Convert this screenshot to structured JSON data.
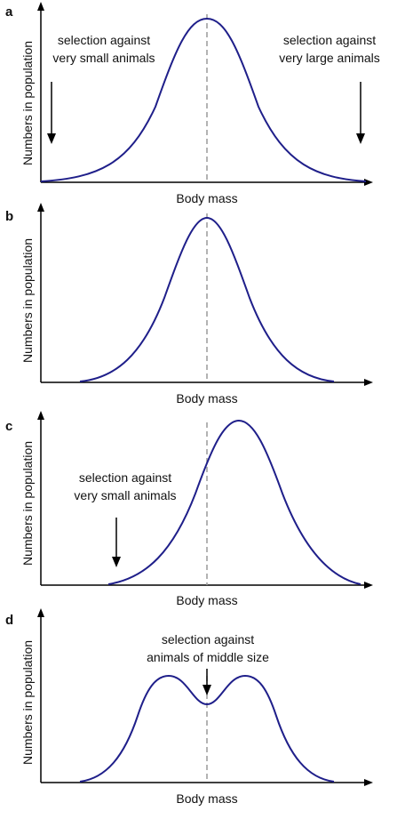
{
  "colors": {
    "curve": "#1f1f8a",
    "axis": "#000000",
    "median_line": "#9a9a9a",
    "arrow": "#000000",
    "text": "#111111"
  },
  "panels": [
    {
      "letter": "a",
      "xlabel": "Body mass",
      "ylabel": "Numbers in population",
      "shape": "wide-bell",
      "annotations": [
        {
          "line1": "selection against",
          "line2": "very small animals"
        },
        {
          "line1": "selection against",
          "line2": "very large animals"
        }
      ]
    },
    {
      "letter": "b",
      "xlabel": "Body mass",
      "ylabel": "Numbers in population",
      "shape": "narrow-bell",
      "annotations": []
    },
    {
      "letter": "c",
      "xlabel": "Body mass",
      "ylabel": "Numbers in population",
      "shape": "shifted-right-bell",
      "annotations": [
        {
          "line1": "selection against",
          "line2": "very small animals"
        }
      ]
    },
    {
      "letter": "d",
      "xlabel": "Body mass",
      "ylabel": "Numbers in population",
      "shape": "bimodal",
      "annotations": [
        {
          "line1": "selection against",
          "line2": "animals of middle size"
        }
      ]
    }
  ]
}
